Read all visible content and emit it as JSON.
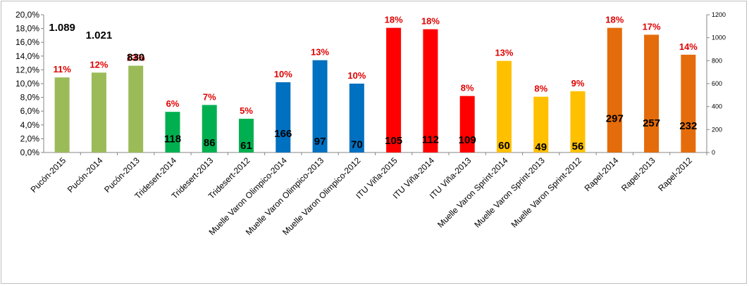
{
  "chart_data": {
    "type": "bar",
    "title": "",
    "xlabel": "",
    "ylabel": "",
    "ylim": [
      0,
      20
    ],
    "y2lim": [
      0,
      1200
    ],
    "y_ticks": [
      "0,0%",
      "2,0%",
      "4,0%",
      "6,0%",
      "8,0%",
      "10,0%",
      "12,0%",
      "14,0%",
      "16,0%",
      "18,0%",
      "20,0%"
    ],
    "y2_ticks": [
      "0",
      "200",
      "400",
      "600",
      "800",
      "1000",
      "1200"
    ],
    "grid": false,
    "legend": "none",
    "categories": [
      "Pucón-2015",
      "Pucón-2014",
      "Pucón-2013",
      "Tridesert-2014",
      "Tridesert-2013",
      "Tridesert-2012",
      "Muelle Varon Olimpico-2014",
      "Muelle Varon Olimpico-2013",
      "Muelle Varon Olimpico-2012",
      "ITU Viña-2015",
      "ITU Viña-2014",
      "ITU Viña-2013",
      "Muelle Varon Sprint-2014",
      "Muelle Varon Sprint-2013",
      "Muelle Varon Sprint-2012",
      "Rapel-2014",
      "Rapel-2013",
      "Rapel-2012"
    ],
    "values": [
      10.9,
      11.6,
      12.6,
      5.9,
      6.9,
      4.9,
      10.2,
      13.4,
      10.0,
      18.1,
      17.9,
      8.2,
      13.3,
      8.1,
      8.9,
      18.1,
      17.1,
      14.2
    ],
    "pct_labels": [
      "11%",
      "12%",
      "13%",
      "6%",
      "7%",
      "5%",
      "10%",
      "13%",
      "10%",
      "18%",
      "18%",
      "8%",
      "13%",
      "8%",
      "9%",
      "18%",
      "17%",
      "14%"
    ],
    "count_labels": [
      "1.089",
      "1.021",
      "830",
      "118",
      "86",
      "61",
      "166",
      "97",
      "70",
      "105",
      "112",
      "109",
      "60",
      "49",
      "56",
      "297",
      "257",
      "232"
    ],
    "count_values": [
      1089,
      1021,
      830,
      118,
      86,
      61,
      166,
      97,
      70,
      105,
      112,
      109,
      60,
      49,
      56,
      297,
      257,
      232
    ],
    "colors": [
      "#9bbb59",
      "#9bbb59",
      "#9bbb59",
      "#00b050",
      "#00b050",
      "#00b050",
      "#0070c0",
      "#0070c0",
      "#0070c0",
      "#ff0000",
      "#ff0000",
      "#ff0000",
      "#ffc000",
      "#ffc000",
      "#ffc000",
      "#e46c0a",
      "#e46c0a",
      "#e46c0a"
    ]
  }
}
